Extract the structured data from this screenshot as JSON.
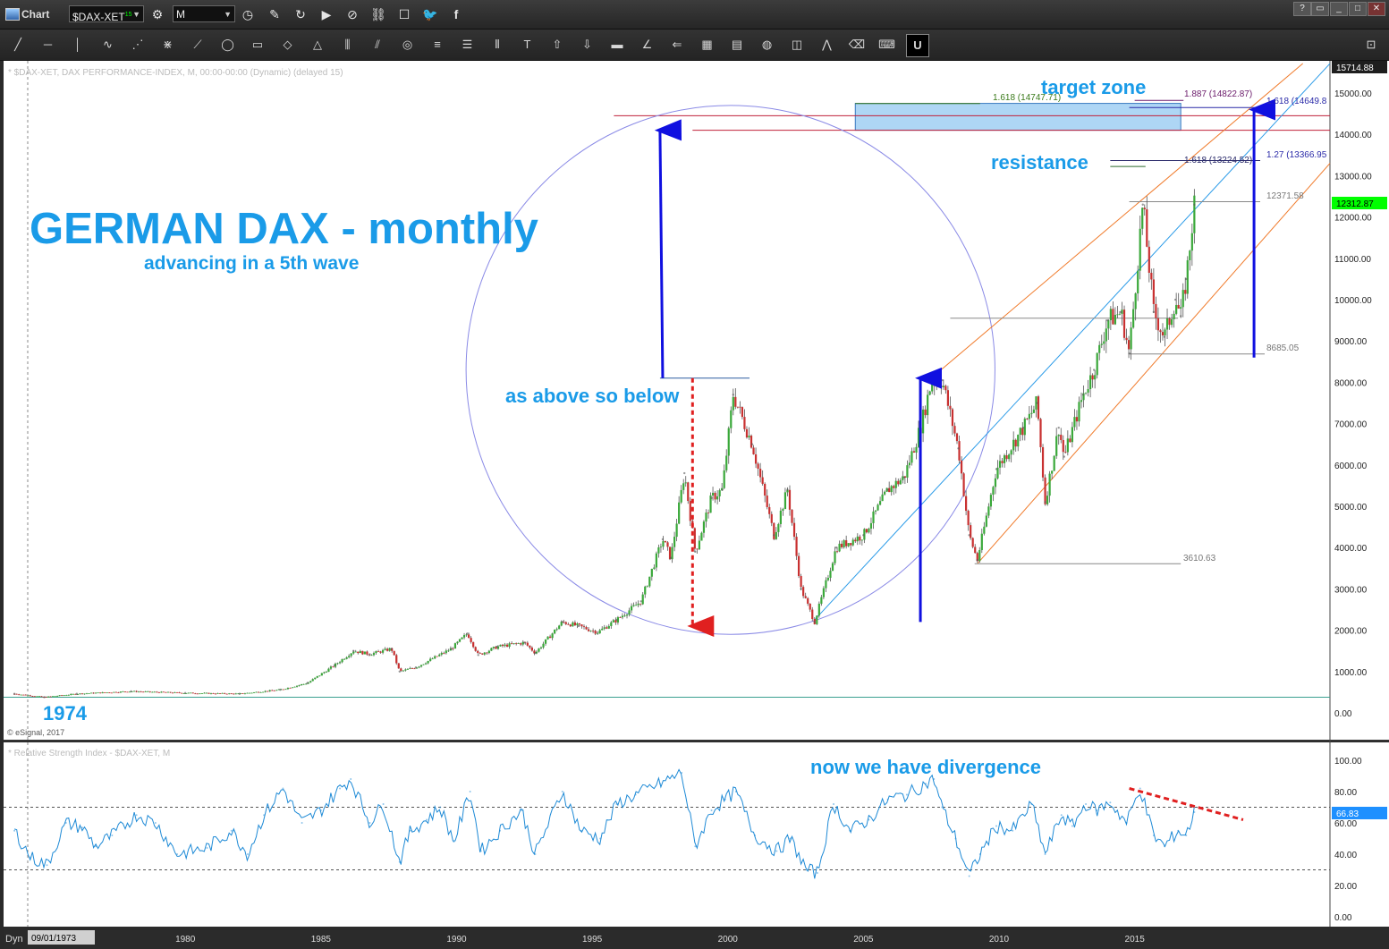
{
  "window": {
    "title": "Chart",
    "help_label": "?",
    "minimize_label": "_",
    "restore_label": "□",
    "close_label": "✕"
  },
  "header": {
    "symbol": "$DAX-XET",
    "symbol_superscript": "15",
    "interval": "M",
    "icons": [
      "settings-icon",
      "clock-icon",
      "pencil-icon",
      "refresh-icon",
      "play-icon",
      "search-reset-icon",
      "link-icon",
      "comment-icon",
      "twitter-icon",
      "facebook-icon"
    ]
  },
  "toolbar": {
    "icons": [
      "line-tool-icon",
      "horizontal-line-icon",
      "vertical-line-icon",
      "wave-icon",
      "fan-icon",
      "gann-icon",
      "speed-lines-icon",
      "ellipse-icon",
      "rectangle-icon",
      "diamond-icon",
      "triangle-icon",
      "cycles-icon",
      "channel-icon",
      "circle-target-icon",
      "fib-retracement-icon",
      "fib-extension-icon",
      "fib-time-icon",
      "text-icon",
      "arrow-up-icon",
      "arrow-down-icon",
      "bar-icon",
      "angle-icon",
      "arrow-left-icon",
      "grid-icon",
      "moe-icon",
      "pattern-icon",
      "pti-icon",
      "zigzag-icon",
      "eraser-icon",
      "keyboard-icon",
      "magnet-icon",
      "expand-icon"
    ]
  },
  "price_panel": {
    "info_line": "* $DAX-XET, DAX PERFORMANCE-INDEX, M, 00:00-00:00 (Dynamic) (delayed 15)",
    "copyright": "© eSignal, 2017",
    "top_value": "15714.88",
    "last_value": "12312.87",
    "last_value_color": "#00ff00"
  },
  "rsi_panel": {
    "info_line": "* Relative Strength Index - $DAX-XET, M",
    "last_value": "66.83",
    "last_value_color": "#1e90ff",
    "upper_level": 70,
    "lower_level": 30
  },
  "time_axis": {
    "mode_label": "Dyn",
    "start_date": "09/01/1973",
    "tick_labels": [
      "1980",
      "1985",
      "1990",
      "1995",
      "2000",
      "2005",
      "2010",
      "2015"
    ]
  },
  "annotations": {
    "title": "GERMAN DAX - monthly",
    "subtitle": "advancing in a 5th wave",
    "target_zone": "target zone",
    "resistance": "resistance",
    "as_above": "as above so below",
    "year_label": "1974",
    "divergence": "now we have divergence",
    "level_12371": "12371.58",
    "level_8685": "8685.05",
    "level_3610": "3610.63",
    "fib_1618_a": "1.618 (14747.71)",
    "fib_1887": "1.887 (14822.87)",
    "fib_1618_b": "1.618 (14649.8",
    "fib_1618_c": "1.618 (13224.52)",
    "fib_127": "1.27 (13366.95"
  },
  "chart_data": [
    {
      "type": "line",
      "title": "",
      "series": [
        {
          "values": [
            [
              1973.7,
              460
            ],
            [
              1974.8,
              380
            ],
            [
              1976,
              460
            ],
            [
              1978,
              520
            ],
            [
              1980,
              480
            ],
            [
              1982,
              460
            ],
            [
              1983.5,
              560
            ],
            [
              1984.5,
              720
            ],
            [
              1985.5,
              1150
            ],
            [
              1986.2,
              1500
            ],
            [
              1986.8,
              1420
            ],
            [
              1987.6,
              1550
            ],
            [
              1987.9,
              1000
            ],
            [
              1988.5,
              1100
            ],
            [
              1989.8,
              1550
            ],
            [
              1990.4,
              1920
            ],
            [
              1990.8,
              1400
            ],
            [
              1991.5,
              1600
            ],
            [
              1992.5,
              1700
            ],
            [
              1992.9,
              1450
            ],
            [
              1993.9,
              2200
            ],
            [
              1994.5,
              2100
            ],
            [
              1995.2,
              1950
            ],
            [
              1995.9,
              2250
            ],
            [
              1996.8,
              2700
            ],
            [
              1997.6,
              4200
            ],
            [
              1997.9,
              3750
            ],
            [
              1998.4,
              5800
            ],
            [
              1998.8,
              3900
            ],
            [
              1999.4,
              5200
            ],
            [
              1999.8,
              5400
            ],
            [
              2000.2,
              7700
            ],
            [
              2000.9,
              6500
            ],
            [
              2001.7,
              4300
            ],
            [
              2002.2,
              5400
            ],
            [
              2002.7,
              3000
            ],
            [
              2003.2,
              2200
            ],
            [
              2004,
              4000
            ],
            [
              2005,
              4300
            ],
            [
              2005.9,
              5400
            ],
            [
              2006.5,
              5700
            ],
            [
              2007.1,
              6900
            ],
            [
              2007.5,
              8000
            ],
            [
              2007.9,
              8050
            ],
            [
              2008.5,
              6400
            ],
            [
              2008.9,
              4300
            ],
            [
              2009.2,
              3700
            ],
            [
              2009.9,
              5900
            ],
            [
              2010.9,
              6900
            ],
            [
              2011.4,
              7500
            ],
            [
              2011.7,
              5100
            ],
            [
              2012.2,
              6900
            ],
            [
              2012.4,
              6200
            ],
            [
              2013.1,
              7700
            ],
            [
              2013.5,
              8300
            ],
            [
              2014,
              9500
            ],
            [
              2014.5,
              9700
            ],
            [
              2014.8,
              8700
            ],
            [
              2015.3,
              12300
            ],
            [
              2015.7,
              9700
            ],
            [
              2016.1,
              9100
            ],
            [
              2016.5,
              10000
            ],
            [
              2016.7,
              9600
            ],
            [
              2016.9,
              10500
            ],
            [
              2017.2,
              12300
            ]
          ]
        }
      ],
      "xlim": [
        1973.3,
        2022.2
      ],
      "ylim": [
        0,
        15714.88
      ],
      "y_tick_labels": [
        "0.00",
        "1000.00",
        "2000.00",
        "3000.00",
        "4000.00",
        "5000.00",
        "6000.00",
        "7000.00",
        "8000.00",
        "9000.00",
        "10000.00",
        "11000.00",
        "12000.00",
        "13000.00",
        "14000.00",
        "15000.00"
      ],
      "levels": [
        3610.63,
        8685.05,
        12371.58
      ],
      "target_zone": [
        14100,
        14750
      ],
      "grid": false
    },
    {
      "type": "line",
      "title": "",
      "series": [
        {
          "values": [
            [
              1973.7,
              55
            ],
            [
              1974.3,
              38
            ],
            [
              1974.9,
              33
            ],
            [
              1975.6,
              60
            ],
            [
              1976.2,
              57
            ],
            [
              1976.7,
              45
            ],
            [
              1977.3,
              52
            ],
            [
              1978.2,
              65
            ],
            [
              1978.9,
              60
            ],
            [
              1979.7,
              40
            ],
            [
              1980.8,
              44
            ],
            [
              1981.7,
              55
            ],
            [
              1982.3,
              40
            ],
            [
              1982.9,
              65
            ],
            [
              1983.6,
              82
            ],
            [
              1984.3,
              60
            ],
            [
              1985,
              68
            ],
            [
              1985.7,
              82
            ],
            [
              1986.1,
              88
            ],
            [
              1986.8,
              60
            ],
            [
              1987.3,
              72
            ],
            [
              1987.9,
              35
            ],
            [
              1988.3,
              55
            ],
            [
              1988.9,
              62
            ],
            [
              1989.4,
              70
            ],
            [
              1989.9,
              48
            ],
            [
              1990.5,
              80
            ],
            [
              1990.9,
              42
            ],
            [
              1991.6,
              55
            ],
            [
              1992.4,
              68
            ],
            [
              1992.9,
              40
            ],
            [
              1993.9,
              80
            ],
            [
              1994.6,
              55
            ],
            [
              1995.3,
              50
            ],
            [
              1995.9,
              72
            ],
            [
              1996.6,
              78
            ],
            [
              1997.5,
              85
            ],
            [
              1998.3,
              92
            ],
            [
              1998.8,
              45
            ],
            [
              1999.4,
              68
            ],
            [
              1999.9,
              75
            ],
            [
              2000.3,
              80
            ],
            [
              2001,
              52
            ],
            [
              2001.8,
              42
            ],
            [
              2002.3,
              50
            ],
            [
              2002.9,
              30
            ],
            [
              2003.3,
              28
            ],
            [
              2003.9,
              72
            ],
            [
              2004.5,
              55
            ],
            [
              2005.2,
              62
            ],
            [
              2005.9,
              75
            ],
            [
              2006.6,
              78
            ],
            [
              2007.3,
              85
            ],
            [
              2007.6,
              88
            ],
            [
              2007.9,
              70
            ],
            [
              2008.4,
              50
            ],
            [
              2008.9,
              26
            ],
            [
              2009.3,
              40
            ],
            [
              2009.9,
              58
            ],
            [
              2010.5,
              55
            ],
            [
              2011.2,
              72
            ],
            [
              2011.7,
              40
            ],
            [
              2012.3,
              65
            ],
            [
              2012.7,
              58
            ],
            [
              2013.2,
              72
            ],
            [
              2013.6,
              68
            ],
            [
              2014.1,
              73
            ],
            [
              2014.7,
              60
            ],
            [
              2015.2,
              82
            ],
            [
              2015.7,
              52
            ],
            [
              2016.1,
              45
            ],
            [
              2016.6,
              55
            ],
            [
              2016.9,
              52
            ],
            [
              2017.2,
              66.83
            ]
          ]
        }
      ],
      "xlim": [
        1973.3,
        2022.2
      ],
      "ylim": [
        0,
        105
      ],
      "y_tick_labels": [
        "0.00",
        "20.00",
        "40.00",
        "60.00",
        "80.00",
        "100.00"
      ],
      "levels": [
        30,
        70
      ],
      "grid": false
    }
  ]
}
